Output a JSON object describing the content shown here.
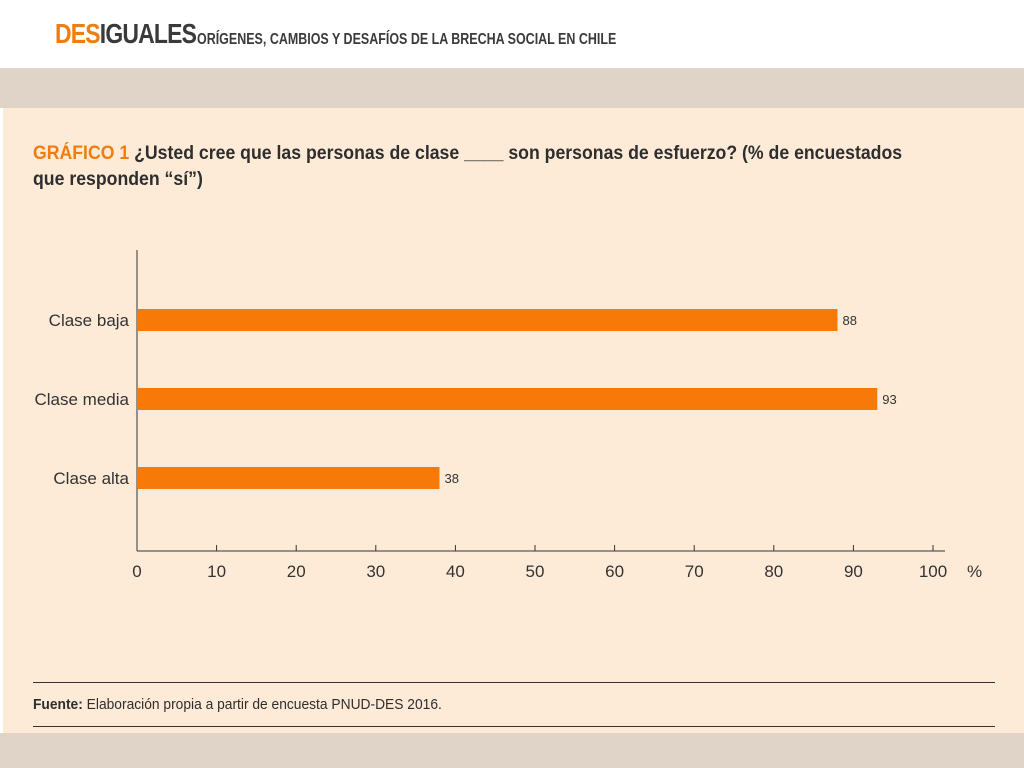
{
  "header": {
    "brand_highlight": "DES",
    "brand_rest": "IGUALES",
    "subtitle": "ORÍGENES, CAMBIOS Y DESAFÍOS DE LA BRECHA SOCIAL EN CHILE"
  },
  "figure": {
    "label": "GRÁFICO 1",
    "question": "¿Usted cree que las personas de clase ____ son personas de esfuerzo? (% de encuestados que responden “sí”)"
  },
  "source": {
    "label": "Fuente:",
    "text": "Elaboración propia a partir de encuesta PNUD-DES 2016."
  },
  "colors": {
    "accent": "#f07d12",
    "bar": "#f77a08",
    "panel_bg": "#fdebd7",
    "band": "#e0d4c8",
    "text": "#2e2e2e"
  },
  "chart_data": {
    "type": "bar",
    "orientation": "horizontal",
    "categories": [
      "Clase baja",
      "Clase media",
      "Clase alta"
    ],
    "values": [
      88,
      93,
      38
    ],
    "data_labels": [
      "88",
      "93",
      "38"
    ],
    "xlim": [
      0,
      100
    ],
    "xticks": [
      0,
      10,
      20,
      30,
      40,
      50,
      60,
      70,
      80,
      90,
      100
    ],
    "x_unit_label": "%",
    "grid": false,
    "legend": "none"
  }
}
